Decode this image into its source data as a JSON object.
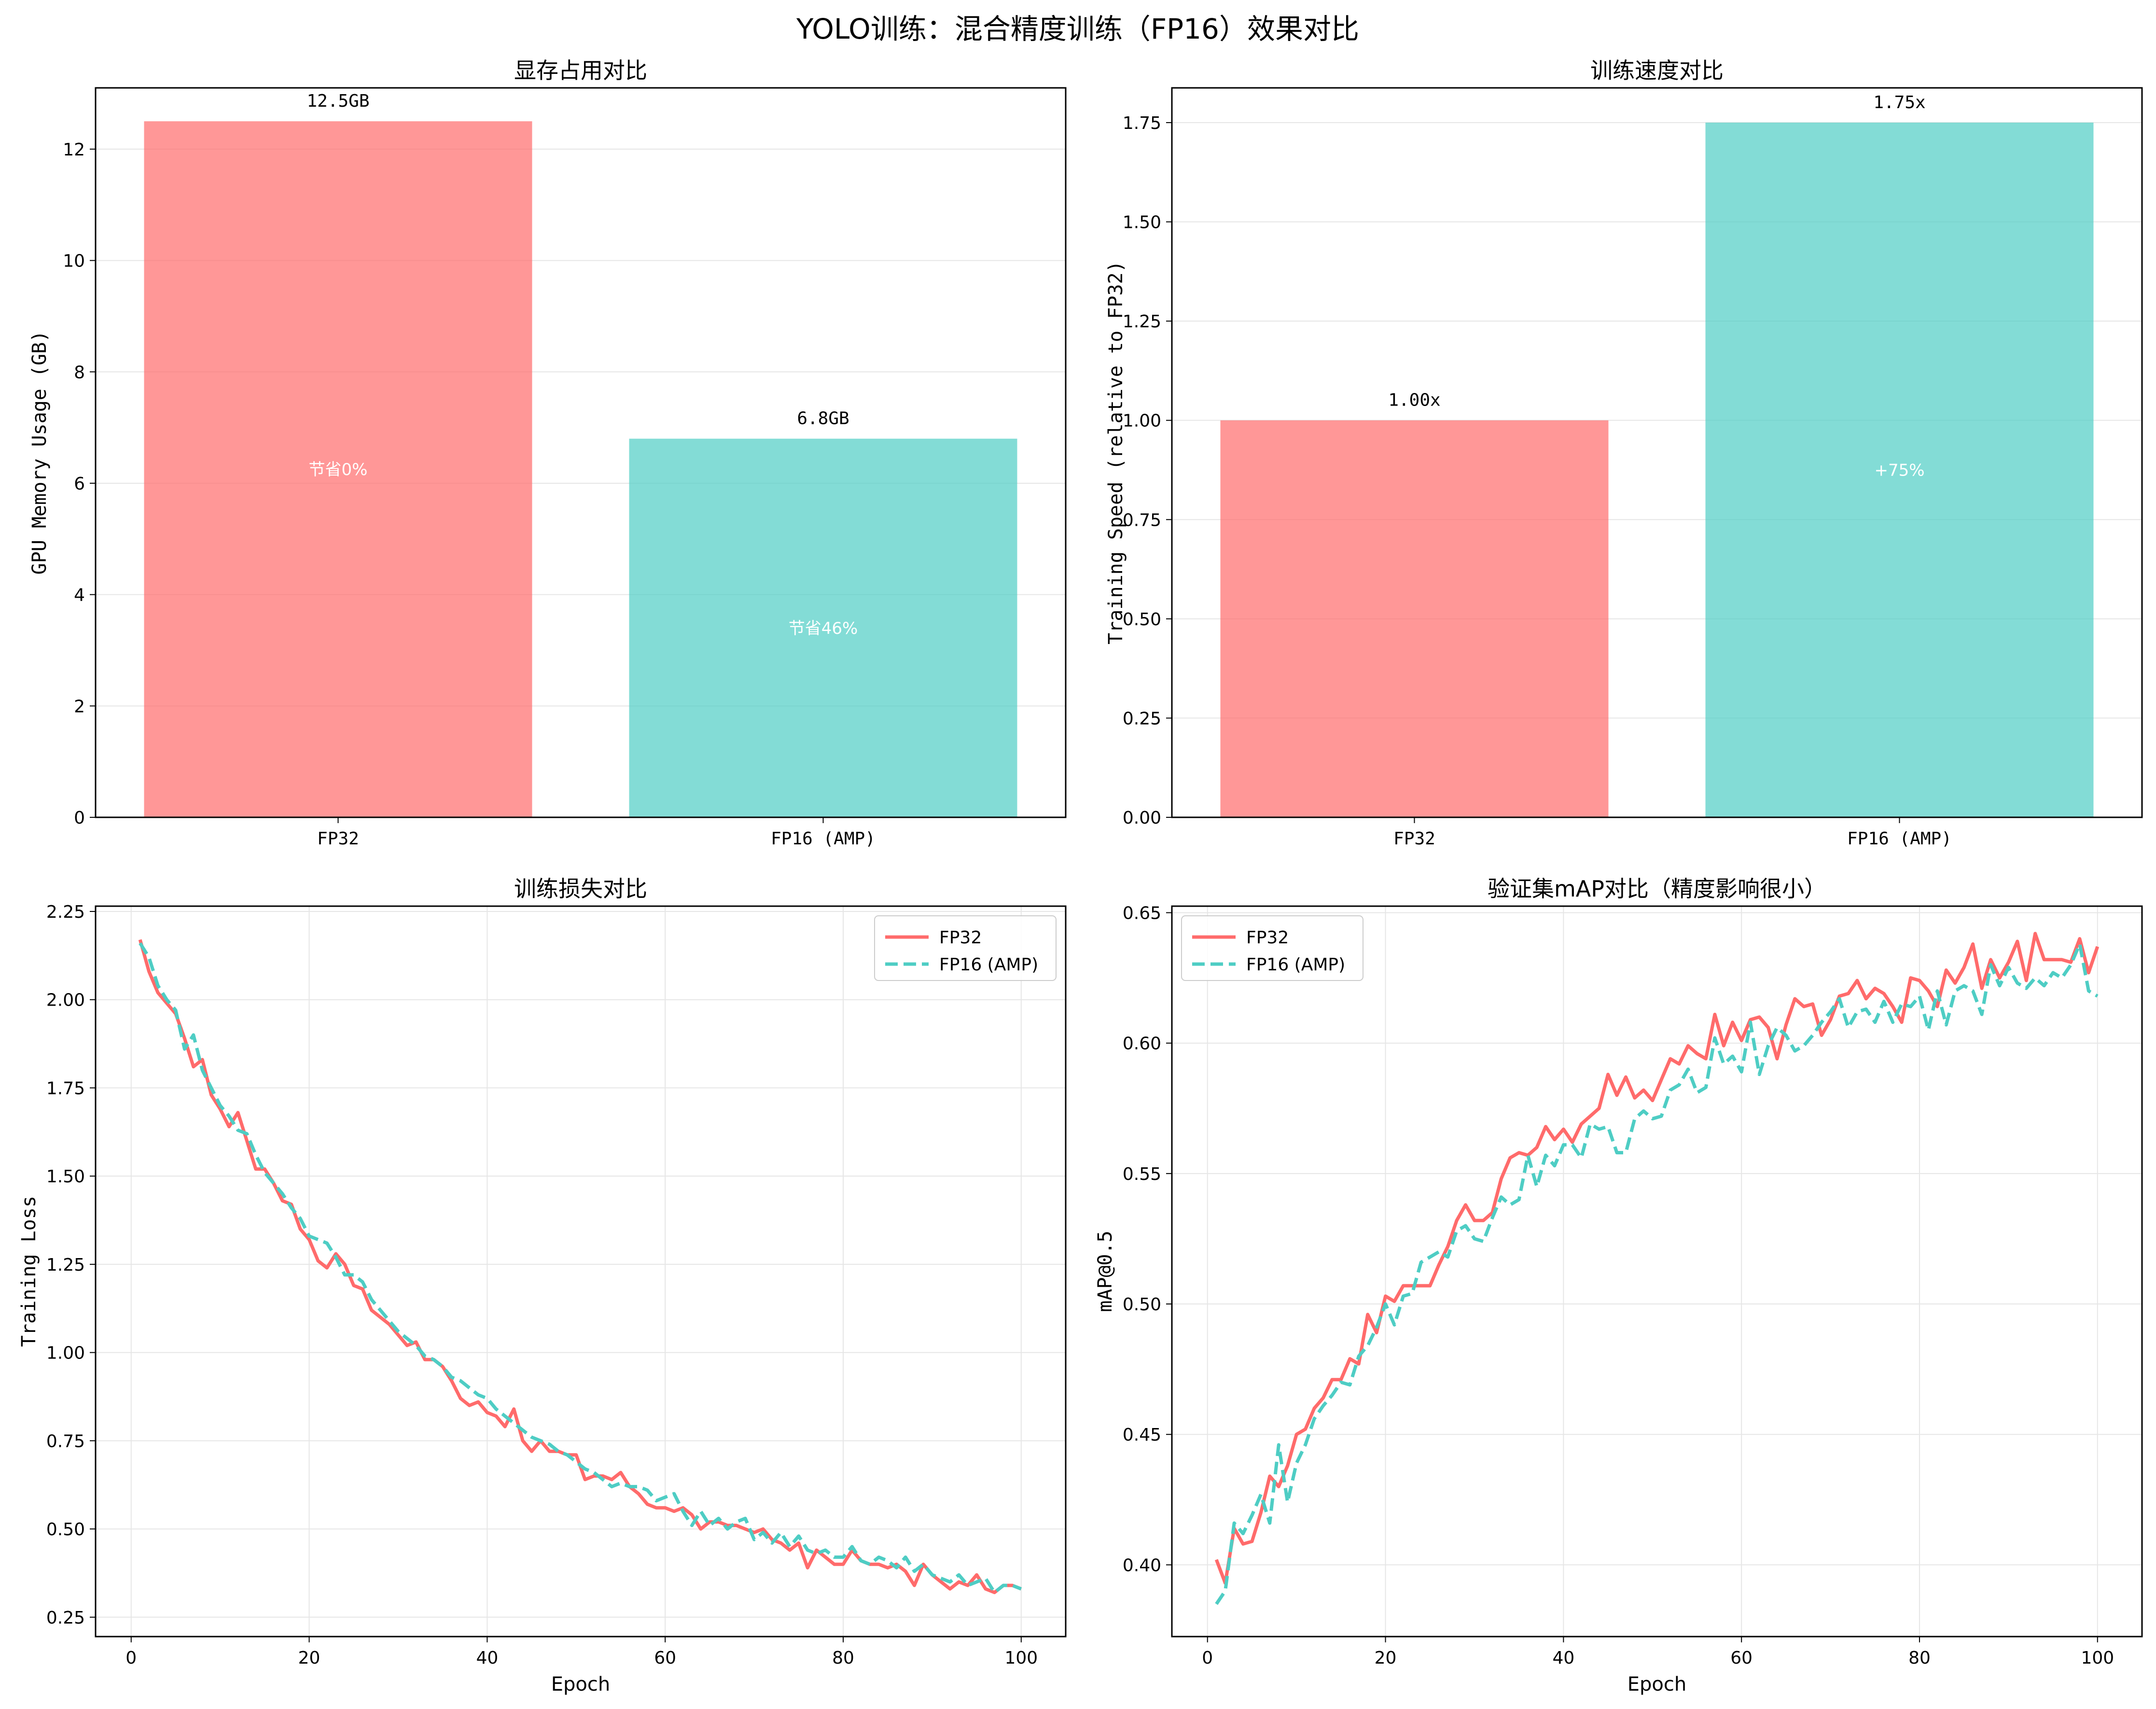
{
  "figure": {
    "title": "YOLO训练：混合精度训练（FP16）效果对比"
  },
  "colors": {
    "fp32": "#FF6B6B",
    "fp16": "#4ECDC4",
    "grid": "#e6e6e6",
    "axis": "#000000"
  },
  "chart_data": [
    {
      "type": "bar",
      "title": "显存占用对比",
      "xlabel": "",
      "ylabel": "GPU Memory Usage (GB)",
      "categories": [
        "FP32",
        "FP16 (AMP)"
      ],
      "values": [
        12.5,
        6.8
      ],
      "value_labels": [
        "12.5GB",
        "6.8GB"
      ],
      "inner_labels": [
        "节省0%",
        "节省46%"
      ],
      "ylim": [
        0,
        13.1
      ],
      "yticks": [
        0,
        2,
        4,
        6,
        8,
        10,
        12
      ],
      "ytick_labels": [
        "0",
        "2",
        "4",
        "6",
        "8",
        "10",
        "12"
      ],
      "grid": true
    },
    {
      "type": "bar",
      "title": "训练速度对比",
      "xlabel": "",
      "ylabel": "Training Speed (relative to FP32)",
      "categories": [
        "FP32",
        "FP16 (AMP)"
      ],
      "values": [
        1.0,
        1.75
      ],
      "value_labels": [
        "1.00x",
        "1.75x"
      ],
      "inner_labels": [
        "",
        "+75%"
      ],
      "ylim": [
        0,
        1.8375
      ],
      "yticks": [
        0,
        0.25,
        0.5,
        0.75,
        1.0,
        1.25,
        1.5,
        1.75
      ],
      "ytick_labels": [
        "0.00",
        "0.25",
        "0.50",
        "0.75",
        "1.00",
        "1.25",
        "1.50",
        "1.75"
      ],
      "grid": true
    },
    {
      "type": "line",
      "title": "训练损失对比",
      "xlabel": "Epoch",
      "ylabel": "Training Loss",
      "xlim": [
        -4,
        105
      ],
      "ylim": [
        0.195,
        2.265
      ],
      "xticks": [
        0,
        20,
        40,
        60,
        80,
        100
      ],
      "xtick_labels": [
        "0",
        "20",
        "40",
        "60",
        "80",
        "100"
      ],
      "yticks": [
        0.25,
        0.5,
        0.75,
        1.0,
        1.25,
        1.5,
        1.75,
        2.0,
        2.25
      ],
      "ytick_labels": [
        "0.25",
        "0.50",
        "0.75",
        "1.00",
        "1.25",
        "1.50",
        "1.75",
        "2.00",
        "2.25"
      ],
      "legend": "top-right",
      "grid": true,
      "series": [
        {
          "name": "FP32",
          "style": "solid",
          "x": [
            1,
            2,
            3,
            4,
            5,
            6,
            7,
            8,
            9,
            10,
            11,
            12,
            13,
            14,
            15,
            16,
            17,
            18,
            19,
            20,
            21,
            22,
            23,
            24,
            25,
            26,
            27,
            28,
            29,
            30,
            31,
            32,
            33,
            34,
            35,
            36,
            37,
            38,
            39,
            40,
            41,
            42,
            43,
            44,
            45,
            46,
            47,
            48,
            49,
            50,
            51,
            52,
            53,
            54,
            55,
            56,
            57,
            58,
            59,
            60,
            61,
            62,
            63,
            64,
            65,
            66,
            67,
            68,
            69,
            70,
            71,
            72,
            73,
            74,
            75,
            76,
            77,
            78,
            79,
            80,
            81,
            82,
            83,
            84,
            85,
            86,
            87,
            88,
            89,
            90,
            91,
            92,
            93,
            94,
            95,
            96,
            97,
            98,
            99,
            100
          ],
          "y": [
            2.17,
            2.08,
            2.02,
            1.99,
            1.96,
            1.89,
            1.81,
            1.83,
            1.73,
            1.69,
            1.64,
            1.68,
            1.6,
            1.52,
            1.52,
            1.48,
            1.43,
            1.42,
            1.35,
            1.32,
            1.26,
            1.24,
            1.28,
            1.25,
            1.19,
            1.18,
            1.12,
            1.1,
            1.08,
            1.05,
            1.02,
            1.03,
            0.98,
            0.98,
            0.96,
            0.92,
            0.87,
            0.85,
            0.86,
            0.83,
            0.82,
            0.79,
            0.84,
            0.75,
            0.72,
            0.75,
            0.72,
            0.72,
            0.71,
            0.71,
            0.64,
            0.65,
            0.65,
            0.64,
            0.66,
            0.62,
            0.6,
            0.57,
            0.56,
            0.56,
            0.55,
            0.56,
            0.54,
            0.5,
            0.52,
            0.52,
            0.51,
            0.51,
            0.5,
            0.49,
            0.5,
            0.47,
            0.46,
            0.44,
            0.46,
            0.39,
            0.44,
            0.42,
            0.4,
            0.4,
            0.44,
            0.41,
            0.4,
            0.4,
            0.39,
            0.4,
            0.38,
            0.34,
            0.4,
            0.37,
            0.35,
            0.33,
            0.35,
            0.34,
            0.37,
            0.33,
            0.32,
            0.34,
            0.34,
            0.33
          ]
        },
        {
          "name": "FP16 (AMP)",
          "style": "dashed",
          "x": [
            1,
            2,
            3,
            4,
            5,
            6,
            7,
            8,
            9,
            10,
            11,
            12,
            13,
            14,
            15,
            16,
            17,
            18,
            19,
            20,
            21,
            22,
            23,
            24,
            25,
            26,
            27,
            28,
            29,
            30,
            31,
            32,
            33,
            34,
            35,
            36,
            37,
            38,
            39,
            40,
            41,
            42,
            43,
            44,
            45,
            46,
            47,
            48,
            49,
            50,
            51,
            52,
            53,
            54,
            55,
            56,
            57,
            58,
            59,
            60,
            61,
            62,
            63,
            64,
            65,
            66,
            67,
            68,
            69,
            70,
            71,
            72,
            73,
            74,
            75,
            76,
            77,
            78,
            79,
            80,
            81,
            82,
            83,
            84,
            85,
            86,
            87,
            88,
            89,
            90,
            91,
            92,
            93,
            94,
            95,
            96,
            97,
            98,
            99,
            100
          ],
          "y": [
            2.16,
            2.12,
            2.04,
            2.0,
            1.97,
            1.86,
            1.9,
            1.8,
            1.75,
            1.7,
            1.67,
            1.63,
            1.62,
            1.56,
            1.51,
            1.48,
            1.45,
            1.41,
            1.38,
            1.33,
            1.32,
            1.31,
            1.27,
            1.22,
            1.22,
            1.2,
            1.15,
            1.12,
            1.09,
            1.06,
            1.04,
            1.02,
            0.99,
            0.98,
            0.96,
            0.93,
            0.92,
            0.9,
            0.88,
            0.87,
            0.84,
            0.82,
            0.8,
            0.78,
            0.76,
            0.75,
            0.74,
            0.72,
            0.71,
            0.69,
            0.67,
            0.66,
            0.64,
            0.62,
            0.63,
            0.62,
            0.62,
            0.61,
            0.58,
            0.59,
            0.6,
            0.55,
            0.51,
            0.55,
            0.51,
            0.53,
            0.5,
            0.52,
            0.53,
            0.47,
            0.49,
            0.46,
            0.49,
            0.45,
            0.48,
            0.44,
            0.43,
            0.44,
            0.42,
            0.42,
            0.45,
            0.41,
            0.4,
            0.42,
            0.41,
            0.39,
            0.42,
            0.38,
            0.4,
            0.37,
            0.36,
            0.35,
            0.37,
            0.34,
            0.35,
            0.36,
            0.32,
            0.34,
            0.34,
            0.33
          ]
        }
      ]
    },
    {
      "type": "line",
      "title": "验证集mAP对比（精度影响很小）",
      "xlabel": "Epoch",
      "ylabel": "mAP@0.5",
      "xlim": [
        -4,
        105
      ],
      "ylim": [
        0.3725,
        0.6525
      ],
      "xticks": [
        0,
        20,
        40,
        60,
        80,
        100
      ],
      "xtick_labels": [
        "0",
        "20",
        "40",
        "60",
        "80",
        "100"
      ],
      "yticks": [
        0.4,
        0.45,
        0.5,
        0.55,
        0.6,
        0.65
      ],
      "ytick_labels": [
        "0.40",
        "0.45",
        "0.50",
        "0.55",
        "0.60",
        "0.65"
      ],
      "legend": "top-left",
      "grid": true,
      "series": [
        {
          "name": "FP32",
          "style": "solid",
          "x": [
            1,
            2,
            3,
            4,
            5,
            6,
            7,
            8,
            9,
            10,
            11,
            12,
            13,
            14,
            15,
            16,
            17,
            18,
            19,
            20,
            21,
            22,
            23,
            24,
            25,
            26,
            27,
            28,
            29,
            30,
            31,
            32,
            33,
            34,
            35,
            36,
            37,
            38,
            39,
            40,
            41,
            42,
            43,
            44,
            45,
            46,
            47,
            48,
            49,
            50,
            51,
            52,
            53,
            54,
            55,
            56,
            57,
            58,
            59,
            60,
            61,
            62,
            63,
            64,
            65,
            66,
            67,
            68,
            69,
            70,
            71,
            72,
            73,
            74,
            75,
            76,
            77,
            78,
            79,
            80,
            81,
            82,
            83,
            84,
            85,
            86,
            87,
            88,
            89,
            90,
            91,
            92,
            93,
            94,
            95,
            96,
            97,
            98,
            99,
            100
          ],
          "y": [
            0.402,
            0.393,
            0.414,
            0.408,
            0.409,
            0.42,
            0.434,
            0.43,
            0.438,
            0.45,
            0.452,
            0.46,
            0.464,
            0.471,
            0.471,
            0.479,
            0.477,
            0.496,
            0.489,
            0.503,
            0.501,
            0.507,
            0.507,
            0.507,
            0.507,
            0.515,
            0.522,
            0.532,
            0.538,
            0.532,
            0.532,
            0.535,
            0.548,
            0.556,
            0.558,
            0.557,
            0.56,
            0.568,
            0.563,
            0.567,
            0.562,
            0.569,
            0.572,
            0.575,
            0.588,
            0.58,
            0.587,
            0.579,
            0.582,
            0.578,
            0.586,
            0.594,
            0.592,
            0.599,
            0.596,
            0.594,
            0.611,
            0.599,
            0.608,
            0.601,
            0.609,
            0.61,
            0.606,
            0.594,
            0.607,
            0.617,
            0.614,
            0.615,
            0.603,
            0.609,
            0.618,
            0.619,
            0.624,
            0.617,
            0.621,
            0.619,
            0.614,
            0.608,
            0.625,
            0.624,
            0.62,
            0.614,
            0.628,
            0.623,
            0.629,
            0.638,
            0.621,
            0.632,
            0.625,
            0.631,
            0.639,
            0.624,
            0.642,
            0.632,
            0.632,
            0.632,
            0.631,
            0.64,
            0.627,
            0.637
          ]
        },
        {
          "name": "FP16 (AMP)",
          "style": "dashed",
          "x": [
            1,
            2,
            3,
            4,
            5,
            6,
            7,
            8,
            9,
            10,
            11,
            12,
            13,
            14,
            15,
            16,
            17,
            18,
            19,
            20,
            21,
            22,
            23,
            24,
            25,
            26,
            27,
            28,
            29,
            30,
            31,
            32,
            33,
            34,
            35,
            36,
            37,
            38,
            39,
            40,
            41,
            42,
            43,
            44,
            45,
            46,
            47,
            48,
            49,
            50,
            51,
            52,
            53,
            54,
            55,
            56,
            57,
            58,
            59,
            60,
            61,
            62,
            63,
            64,
            65,
            66,
            67,
            68,
            69,
            70,
            71,
            72,
            73,
            74,
            75,
            76,
            77,
            78,
            79,
            80,
            81,
            82,
            83,
            84,
            85,
            86,
            87,
            88,
            89,
            90,
            91,
            92,
            93,
            94,
            95,
            96,
            97,
            98,
            99,
            100
          ],
          "y": [
            0.385,
            0.39,
            0.416,
            0.412,
            0.419,
            0.427,
            0.416,
            0.446,
            0.424,
            0.439,
            0.446,
            0.456,
            0.461,
            0.465,
            0.47,
            0.469,
            0.48,
            0.484,
            0.491,
            0.5,
            0.492,
            0.503,
            0.504,
            0.516,
            0.518,
            0.52,
            0.518,
            0.528,
            0.53,
            0.525,
            0.524,
            0.533,
            0.541,
            0.538,
            0.54,
            0.557,
            0.545,
            0.557,
            0.553,
            0.561,
            0.561,
            0.556,
            0.569,
            0.567,
            0.568,
            0.558,
            0.558,
            0.571,
            0.574,
            0.571,
            0.572,
            0.582,
            0.584,
            0.59,
            0.581,
            0.583,
            0.602,
            0.592,
            0.595,
            0.589,
            0.608,
            0.588,
            0.599,
            0.606,
            0.603,
            0.597,
            0.599,
            0.603,
            0.608,
            0.612,
            0.617,
            0.606,
            0.612,
            0.613,
            0.608,
            0.616,
            0.608,
            0.615,
            0.614,
            0.618,
            0.605,
            0.62,
            0.607,
            0.62,
            0.622,
            0.62,
            0.611,
            0.63,
            0.622,
            0.629,
            0.623,
            0.621,
            0.625,
            0.622,
            0.627,
            0.625,
            0.63,
            0.638,
            0.62,
            0.618
          ]
        }
      ]
    }
  ]
}
